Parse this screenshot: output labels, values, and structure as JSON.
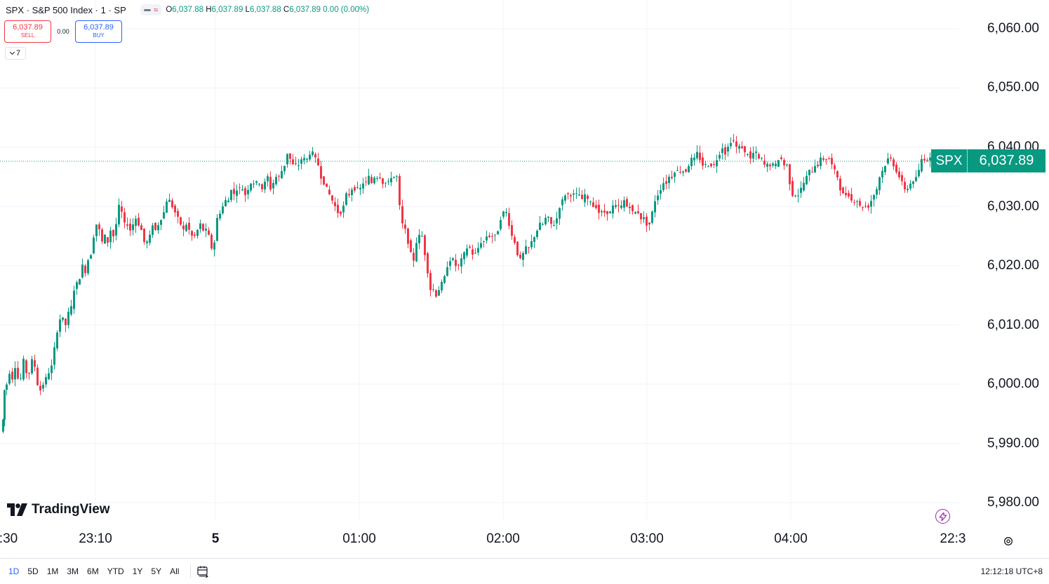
{
  "legend": {
    "symbol": "SPX · S&P 500 Index · 1 · SP",
    "ohlc": [
      {
        "k": "O",
        "v": "6,037.88"
      },
      {
        "k": "H",
        "v": "6,037.89"
      },
      {
        "k": "L",
        "v": "6,037.88"
      },
      {
        "k": "C",
        "v": "6,037.89"
      }
    ],
    "change": "0.00 (0.00%)"
  },
  "trade": {
    "sell_price": "6,037.89",
    "sell_label": "SELL",
    "spread": "0.00",
    "buy_price": "6,037.89",
    "buy_label": "BUY",
    "collapse_count": "7"
  },
  "price_axis": {
    "labels": [
      "6,060.00",
      "6,050.00",
      "6,040.00",
      "6,030.00",
      "6,020.00",
      "6,010.00",
      "6,000.00",
      "5,990.00",
      "5,980.00"
    ]
  },
  "last_price": {
    "symbol": "SPX",
    "value": "6,037.89"
  },
  "time_axis": {
    "labels": [
      ":30",
      "23:10",
      "5",
      "01:00",
      "02:00",
      "03:00",
      "04:00",
      "22:3"
    ]
  },
  "brand": {
    "name": "TradingView"
  },
  "bottom_bar": {
    "ranges": [
      "1D",
      "5D",
      "1M",
      "3M",
      "6M",
      "YTD",
      "1Y",
      "5Y",
      "All"
    ],
    "active_range": "1D",
    "clock": "12:12:18 UTC+8"
  },
  "colors": {
    "up": "#089981",
    "down": "#f23645",
    "accent": "#2962ff",
    "grid": "#f0f3fa"
  },
  "icons": [
    "chevron-down-icon",
    "calendar-range-icon",
    "lightning-icon",
    "gear-icon",
    "tradingview-logo-icon"
  ],
  "chart_data": {
    "type": "candlestick",
    "symbol": "SPX",
    "interval": "1",
    "ylim": [
      5975,
      6065
    ],
    "y_ticks": [
      6060,
      6050,
      6040,
      6030,
      6020,
      6010,
      6000,
      5990,
      5980
    ],
    "x_ticks": [
      ":30",
      "23:10",
      "5",
      "01:00",
      "02:00",
      "03:00",
      "04:00",
      "22:3"
    ],
    "last_close": 6037.89,
    "grid": true,
    "close_path": [
      [
        0,
        5992
      ],
      [
        3,
        5994
      ],
      [
        5,
        5999
      ],
      [
        8,
        6000
      ],
      [
        12,
        6002
      ],
      [
        16,
        6001
      ],
      [
        20,
        6003
      ],
      [
        24,
        6001
      ],
      [
        28,
        6001
      ],
      [
        32,
        6004
      ],
      [
        36,
        6002
      ],
      [
        40,
        6002
      ],
      [
        44,
        6004
      ],
      [
        48,
        6003
      ],
      [
        52,
        6000
      ],
      [
        56,
        5999
      ],
      [
        60,
        6000
      ],
      [
        64,
        6001
      ],
      [
        68,
        6002
      ],
      [
        72,
        6003
      ],
      [
        76,
        6006
      ],
      [
        80,
        6009
      ],
      [
        84,
        6011
      ],
      [
        88,
        6011
      ],
      [
        92,
        6010
      ],
      [
        96,
        6012
      ],
      [
        100,
        6013
      ],
      [
        104,
        6016
      ],
      [
        108,
        6017
      ],
      [
        112,
        6018
      ],
      [
        116,
        6020
      ],
      [
        120,
        6019
      ],
      [
        124,
        6021
      ],
      [
        128,
        6022
      ],
      [
        132,
        6025
      ],
      [
        136,
        6027
      ],
      [
        140,
        6026
      ],
      [
        144,
        6024
      ],
      [
        148,
        6025
      ],
      [
        152,
        6024
      ],
      [
        156,
        6026
      ],
      [
        160,
        6025
      ],
      [
        164,
        6027
      ],
      [
        168,
        6030
      ],
      [
        172,
        6029
      ],
      [
        176,
        6027
      ],
      [
        180,
        6027
      ],
      [
        184,
        6026
      ],
      [
        188,
        6027
      ],
      [
        192,
        6028
      ],
      [
        196,
        6027
      ],
      [
        200,
        6026
      ],
      [
        204,
        6024
      ],
      [
        208,
        6024
      ],
      [
        212,
        6025
      ],
      [
        216,
        6027
      ],
      [
        220,
        6026
      ],
      [
        224,
        6027
      ],
      [
        228,
        6028
      ],
      [
        232,
        6029
      ],
      [
        236,
        6031
      ],
      [
        240,
        6031
      ],
      [
        244,
        6030
      ],
      [
        248,
        6029
      ],
      [
        252,
        6028
      ],
      [
        256,
        6027
      ],
      [
        260,
        6026
      ],
      [
        264,
        6027
      ],
      [
        268,
        6026
      ],
      [
        272,
        6025
      ],
      [
        276,
        6025
      ],
      [
        280,
        6026
      ],
      [
        284,
        6027
      ],
      [
        288,
        6026
      ],
      [
        292,
        6026
      ],
      [
        296,
        6025
      ],
      [
        300,
        6023
      ],
      [
        304,
        6024
      ],
      [
        308,
        6028
      ],
      [
        312,
        6029
      ],
      [
        316,
        6030
      ],
      [
        320,
        6031
      ],
      [
        324,
        6031
      ],
      [
        328,
        6033
      ],
      [
        332,
        6032
      ],
      [
        336,
        6033
      ],
      [
        340,
        6033
      ],
      [
        344,
        6033
      ],
      [
        348,
        6032
      ],
      [
        352,
        6033
      ],
      [
        356,
        6034
      ],
      [
        360,
        6034
      ],
      [
        364,
        6034
      ],
      [
        368,
        6034
      ],
      [
        372,
        6033
      ],
      [
        376,
        6034
      ],
      [
        380,
        6035
      ],
      [
        384,
        6033
      ],
      [
        388,
        6034
      ],
      [
        392,
        6035
      ],
      [
        396,
        6035
      ],
      [
        400,
        6036
      ],
      [
        404,
        6037
      ],
      [
        408,
        6039
      ],
      [
        412,
        6038
      ],
      [
        416,
        6037
      ],
      [
        420,
        6037
      ],
      [
        424,
        6037
      ],
      [
        428,
        6038
      ],
      [
        432,
        6038
      ],
      [
        436,
        6038
      ],
      [
        440,
        6039
      ],
      [
        444,
        6039
      ],
      [
        448,
        6038
      ],
      [
        452,
        6037
      ],
      [
        456,
        6035
      ],
      [
        460,
        6034
      ],
      [
        464,
        6033
      ],
      [
        468,
        6032
      ],
      [
        472,
        6031
      ],
      [
        476,
        6030
      ],
      [
        480,
        6029
      ],
      [
        484,
        6029
      ],
      [
        488,
        6030
      ],
      [
        492,
        6032
      ],
      [
        496,
        6032
      ],
      [
        500,
        6033
      ],
      [
        504,
        6033
      ],
      [
        508,
        6033
      ],
      [
        512,
        6033
      ],
      [
        516,
        6034
      ],
      [
        520,
        6034
      ],
      [
        524,
        6035
      ],
      [
        528,
        6034
      ],
      [
        532,
        6035
      ],
      [
        536,
        6035
      ],
      [
        540,
        6035
      ],
      [
        544,
        6034
      ],
      [
        548,
        6034
      ],
      [
        552,
        6034
      ],
      [
        556,
        6035
      ],
      [
        560,
        6035
      ],
      [
        564,
        6035
      ],
      [
        568,
        6030
      ],
      [
        572,
        6027
      ],
      [
        576,
        6026
      ],
      [
        580,
        6024
      ],
      [
        584,
        6022
      ],
      [
        588,
        6021
      ],
      [
        592,
        6024
      ],
      [
        596,
        6025
      ],
      [
        600,
        6025
      ],
      [
        604,
        6022
      ],
      [
        608,
        6019
      ],
      [
        612,
        6016
      ],
      [
        616,
        6016
      ],
      [
        620,
        6015
      ],
      [
        624,
        6016
      ],
      [
        628,
        6017
      ],
      [
        632,
        6018
      ],
      [
        636,
        6020
      ],
      [
        640,
        6021
      ],
      [
        644,
        6021
      ],
      [
        648,
        6020
      ],
      [
        652,
        6020
      ],
      [
        656,
        6021
      ],
      [
        660,
        6022
      ],
      [
        664,
        6023
      ],
      [
        668,
        6023
      ],
      [
        672,
        6022
      ],
      [
        676,
        6022
      ],
      [
        680,
        6023
      ],
      [
        684,
        6024
      ],
      [
        688,
        6024
      ],
      [
        692,
        6025
      ],
      [
        696,
        6025
      ],
      [
        700,
        6025
      ],
      [
        704,
        6025
      ],
      [
        708,
        6026
      ],
      [
        712,
        6028
      ],
      [
        716,
        6029
      ],
      [
        720,
        6029
      ],
      [
        724,
        6027
      ],
      [
        728,
        6025
      ],
      [
        732,
        6024
      ],
      [
        736,
        6022
      ],
      [
        740,
        6021
      ],
      [
        744,
        6022
      ],
      [
        748,
        6023
      ],
      [
        752,
        6023
      ],
      [
        756,
        6024
      ],
      [
        760,
        6025
      ],
      [
        764,
        6026
      ],
      [
        768,
        6027
      ],
      [
        772,
        6027
      ],
      [
        776,
        6028
      ],
      [
        780,
        6028
      ],
      [
        784,
        6027
      ],
      [
        788,
        6027
      ],
      [
        792,
        6028
      ],
      [
        796,
        6030
      ],
      [
        800,
        6031
      ],
      [
        804,
        6032
      ],
      [
        808,
        6032
      ],
      [
        812,
        6032
      ],
      [
        816,
        6032
      ],
      [
        820,
        6032
      ],
      [
        824,
        6032
      ],
      [
        828,
        6031
      ],
      [
        832,
        6032
      ],
      [
        836,
        6031
      ],
      [
        840,
        6031
      ],
      [
        844,
        6030
      ],
      [
        848,
        6030
      ],
      [
        852,
        6029
      ],
      [
        856,
        6029
      ],
      [
        860,
        6029
      ],
      [
        864,
        6029
      ],
      [
        868,
        6029
      ],
      [
        872,
        6030
      ],
      [
        876,
        6030
      ],
      [
        880,
        6030
      ],
      [
        884,
        6030
      ],
      [
        888,
        6031
      ],
      [
        892,
        6030
      ],
      [
        896,
        6030
      ],
      [
        900,
        6029
      ],
      [
        904,
        6029
      ],
      [
        908,
        6029
      ],
      [
        912,
        6028
      ],
      [
        916,
        6028
      ],
      [
        920,
        6027
      ],
      [
        924,
        6027
      ],
      [
        928,
        6029
      ],
      [
        932,
        6031
      ],
      [
        936,
        6032
      ],
      [
        940,
        6033
      ],
      [
        944,
        6034
      ],
      [
        948,
        6034
      ],
      [
        952,
        6035
      ],
      [
        956,
        6035
      ],
      [
        960,
        6036
      ],
      [
        964,
        6036
      ],
      [
        968,
        6036
      ],
      [
        972,
        6036
      ],
      [
        976,
        6036
      ],
      [
        980,
        6037
      ],
      [
        984,
        6038
      ],
      [
        988,
        6038
      ],
      [
        992,
        6039
      ],
      [
        996,
        6038
      ],
      [
        1000,
        6037
      ],
      [
        1004,
        6037
      ],
      [
        1008,
        6037
      ],
      [
        1012,
        6037
      ],
      [
        1016,
        6037
      ],
      [
        1020,
        6038
      ],
      [
        1024,
        6039
      ],
      [
        1028,
        6040
      ],
      [
        1032,
        6039
      ],
      [
        1036,
        6040
      ],
      [
        1040,
        6041
      ],
      [
        1044,
        6041
      ],
      [
        1048,
        6040
      ],
      [
        1052,
        6040
      ],
      [
        1056,
        6040
      ],
      [
        1060,
        6039
      ],
      [
        1064,
        6039
      ],
      [
        1068,
        6038
      ],
      [
        1072,
        6039
      ],
      [
        1076,
        6039
      ],
      [
        1080,
        6038
      ],
      [
        1084,
        6038
      ],
      [
        1088,
        6037
      ],
      [
        1092,
        6037
      ],
      [
        1096,
        6037
      ],
      [
        1100,
        6037
      ],
      [
        1104,
        6037
      ],
      [
        1108,
        6038
      ],
      [
        1112,
        6038
      ],
      [
        1116,
        6037
      ],
      [
        1120,
        6037
      ],
      [
        1124,
        6034
      ],
      [
        1128,
        6032
      ],
      [
        1132,
        6032
      ],
      [
        1136,
        6032
      ],
      [
        1140,
        6033
      ],
      [
        1144,
        6034
      ],
      [
        1148,
        6035
      ],
      [
        1152,
        6036
      ],
      [
        1156,
        6036
      ],
      [
        1160,
        6037
      ],
      [
        1164,
        6037
      ],
      [
        1168,
        6038
      ],
      [
        1172,
        6038
      ],
      [
        1176,
        6038
      ],
      [
        1180,
        6038
      ],
      [
        1184,
        6037
      ],
      [
        1188,
        6036
      ],
      [
        1192,
        6035
      ],
      [
        1196,
        6033
      ],
      [
        1200,
        6032
      ],
      [
        1204,
        6032
      ],
      [
        1208,
        6032
      ],
      [
        1212,
        6031
      ],
      [
        1216,
        6031
      ],
      [
        1220,
        6031
      ],
      [
        1224,
        6030
      ],
      [
        1228,
        6030
      ],
      [
        1232,
        6030
      ],
      [
        1236,
        6030
      ],
      [
        1240,
        6031
      ],
      [
        1244,
        6032
      ],
      [
        1248,
        6033
      ],
      [
        1252,
        6035
      ],
      [
        1256,
        6036
      ],
      [
        1260,
        6037
      ],
      [
        1264,
        6038
      ],
      [
        1268,
        6038
      ],
      [
        1272,
        6037
      ],
      [
        1276,
        6036
      ],
      [
        1280,
        6035
      ],
      [
        1284,
        6034
      ],
      [
        1288,
        6033
      ],
      [
        1292,
        6033
      ],
      [
        1296,
        6034
      ],
      [
        1300,
        6034
      ],
      [
        1304,
        6035
      ],
      [
        1308,
        6036
      ],
      [
        1312,
        6038
      ],
      [
        1316,
        6038
      ],
      [
        1320,
        6038
      ],
      [
        1324,
        6038
      ],
      [
        1328,
        6038
      ]
    ]
  }
}
